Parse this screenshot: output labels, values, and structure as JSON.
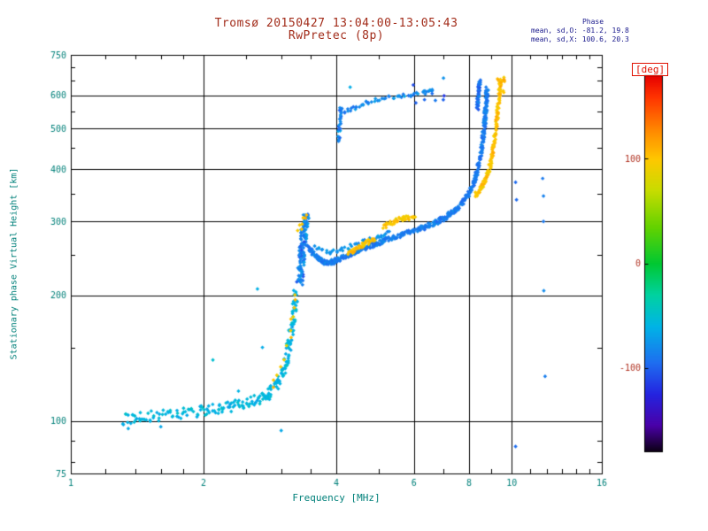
{
  "chart_data": {
    "type": "scatter",
    "title": "Tromsø 20150427 13:04:00-13:05:43",
    "subtitle": "RwPretec (8p)",
    "xlabel": "Frequency [MHz]",
    "ylabel": "Stationary phase Virtual Height [km]",
    "xscale": "log",
    "yscale": "log",
    "xlim": [
      1,
      16
    ],
    "ylim": [
      75,
      750
    ],
    "xticks": [
      1,
      2,
      4,
      6,
      8,
      10,
      16
    ],
    "yticks": [
      75,
      100,
      200,
      300,
      400,
      500,
      600,
      750
    ],
    "xminor": [
      1.2,
      1.4,
      1.6,
      1.8,
      2.5,
      3,
      3.5,
      5,
      7,
      9,
      11,
      12,
      13,
      14,
      15
    ],
    "yminor": [
      80,
      90,
      150,
      250,
      350,
      450,
      550,
      650,
      700
    ],
    "grid": true,
    "annotations": {
      "header": "Phase",
      "o_mode": "mean, sd,O: -81.2, 19.8",
      "x_mode": "mean, sd,X: 100.6, 20.3"
    },
    "colorbar": {
      "label": "[deg]",
      "ticks": [
        100,
        0,
        -100
      ],
      "min": -180,
      "max": 180
    },
    "marker": {
      "shape": "diamond",
      "size": 2.2
    },
    "colors": {
      "title": "#a22c1a",
      "axis": "#00807a",
      "annotation": "#1a1a8c",
      "colorbar_label": "#e01000",
      "colorbar_tick": "#b03020",
      "grid": "#000000",
      "background": "#ffffff"
    },
    "colormap": [
      {
        "v": -180,
        "c": "#0d0014"
      },
      {
        "v": -155,
        "c": "#4a00a8"
      },
      {
        "v": -125,
        "c": "#2424e0"
      },
      {
        "v": -95,
        "c": "#1e6ef0"
      },
      {
        "v": -60,
        "c": "#00b4e6"
      },
      {
        "v": -30,
        "c": "#00d2a0"
      },
      {
        "v": 0,
        "c": "#00c832"
      },
      {
        "v": 35,
        "c": "#64d200"
      },
      {
        "v": 70,
        "c": "#c8dc00"
      },
      {
        "v": 100,
        "c": "#ffc800"
      },
      {
        "v": 130,
        "c": "#ff8200"
      },
      {
        "v": 160,
        "c": "#ff3200"
      },
      {
        "v": 180,
        "c": "#e60000"
      }
    ],
    "traces": [
      {
        "name": "E-region O-mode low trace",
        "phase": -58,
        "sd": 14,
        "density": 3,
        "interp": 4,
        "fj": 0.012,
        "hj": 0.03,
        "pts": [
          [
            1.32,
            101
          ],
          [
            1.42,
            102
          ],
          [
            1.55,
            103
          ],
          [
            1.7,
            104
          ],
          [
            1.85,
            105
          ],
          [
            2.0,
            106
          ],
          [
            2.15,
            107
          ],
          [
            2.3,
            108
          ],
          [
            2.45,
            110
          ],
          [
            2.6,
            112
          ],
          [
            2.72,
            114
          ],
          [
            2.82,
            117
          ],
          [
            2.92,
            122
          ],
          [
            3.0,
            128
          ],
          [
            3.06,
            136
          ],
          [
            3.11,
            146
          ],
          [
            3.15,
            157
          ],
          [
            3.19,
            170
          ],
          [
            3.22,
            186
          ],
          [
            3.24,
            203
          ]
        ]
      },
      {
        "name": "E-region X-mode sprinkle",
        "phase": 96,
        "sd": 18,
        "density": 1,
        "interp": 2,
        "fj": 0.01,
        "hj": 0.02,
        "pts": [
          [
            2.86,
            120
          ],
          [
            2.96,
            130
          ],
          [
            3.06,
            143
          ],
          [
            3.13,
            158
          ],
          [
            3.18,
            172
          ],
          [
            3.21,
            188
          ],
          [
            3.23,
            200
          ]
        ]
      },
      {
        "name": "spread cluster 3.3-3.4 MHz",
        "phase": -85,
        "sd": 28,
        "density": 5,
        "interp": 3,
        "fj": 0.016,
        "hj": 0.02,
        "pts": [
          [
            3.3,
            214
          ],
          [
            3.32,
            226
          ],
          [
            3.34,
            240
          ],
          [
            3.35,
            253
          ],
          [
            3.36,
            266
          ],
          [
            3.37,
            278
          ],
          [
            3.38,
            290
          ],
          [
            3.4,
            300
          ],
          [
            3.42,
            308
          ]
        ]
      },
      {
        "name": "cluster X-mode sprinkle",
        "phase": 100,
        "sd": 15,
        "density": 2,
        "interp": 1,
        "fj": 0.012,
        "hj": 0.012,
        "pts": [
          [
            3.34,
            296
          ],
          [
            3.37,
            304
          ],
          [
            3.41,
            310
          ],
          [
            3.3,
            288
          ]
        ]
      },
      {
        "name": "F-region O-mode main trace",
        "phase": -88,
        "sd": 12,
        "density": 4,
        "interp": 4,
        "fj": 0.007,
        "hj": 0.013,
        "pts": [
          [
            3.46,
            262
          ],
          [
            3.56,
            250
          ],
          [
            3.66,
            244
          ],
          [
            3.76,
            240
          ],
          [
            3.86,
            239
          ],
          [
            3.96,
            241
          ],
          [
            4.1,
            245
          ],
          [
            4.3,
            250
          ],
          [
            4.5,
            256
          ],
          [
            4.72,
            261
          ],
          [
            4.95,
            266
          ],
          [
            5.2,
            271
          ],
          [
            5.5,
            276
          ],
          [
            5.8,
            281
          ],
          [
            6.1,
            286
          ],
          [
            6.4,
            292
          ],
          [
            6.7,
            298
          ],
          [
            7.0,
            305
          ],
          [
            7.3,
            314
          ],
          [
            7.6,
            326
          ],
          [
            7.85,
            340
          ],
          [
            8.05,
            356
          ],
          [
            8.22,
            375
          ],
          [
            8.36,
            398
          ],
          [
            8.47,
            425
          ],
          [
            8.56,
            455
          ],
          [
            8.63,
            488
          ],
          [
            8.69,
            522
          ],
          [
            8.73,
            556
          ],
          [
            8.76,
            590
          ],
          [
            8.79,
            620
          ]
        ]
      },
      {
        "name": "F-region O-mode upper branch",
        "phase": -78,
        "sd": 12,
        "density": 2,
        "interp": 3,
        "fj": 0.008,
        "hj": 0.012,
        "pts": [
          [
            3.6,
            260
          ],
          [
            3.8,
            253
          ],
          [
            4.0,
            255
          ],
          [
            4.25,
            260
          ],
          [
            4.5,
            266
          ],
          [
            4.75,
            271
          ],
          [
            5.0,
            276
          ],
          [
            5.25,
            281
          ]
        ]
      },
      {
        "name": "F-region X-mode patch 1",
        "phase": 102,
        "sd": 14,
        "density": 3,
        "interp": 3,
        "fj": 0.009,
        "hj": 0.013,
        "pts": [
          [
            4.28,
            252
          ],
          [
            4.42,
            257
          ],
          [
            4.56,
            262
          ],
          [
            4.7,
            267
          ],
          [
            4.85,
            272
          ]
        ]
      },
      {
        "name": "F-region X-mode patch 2",
        "phase": 98,
        "sd": 14,
        "density": 3,
        "interp": 3,
        "fj": 0.009,
        "hj": 0.012,
        "pts": [
          [
            5.15,
            292
          ],
          [
            5.3,
            297
          ],
          [
            5.45,
            301
          ],
          [
            5.6,
            304
          ],
          [
            5.78,
            306
          ],
          [
            6.0,
            304
          ]
        ]
      },
      {
        "name": "F-region X-mode rise",
        "phase": 100,
        "sd": 16,
        "density": 4,
        "interp": 3,
        "fj": 0.006,
        "hj": 0.014,
        "pts": [
          [
            8.3,
            348
          ],
          [
            8.45,
            356
          ],
          [
            8.6,
            367
          ],
          [
            8.75,
            381
          ],
          [
            8.88,
            398
          ],
          [
            8.98,
            418
          ],
          [
            9.06,
            442
          ],
          [
            9.13,
            468
          ],
          [
            9.2,
            498
          ],
          [
            9.26,
            530
          ],
          [
            9.31,
            562
          ],
          [
            9.36,
            596
          ],
          [
            9.4,
            628
          ],
          [
            9.44,
            655
          ]
        ]
      },
      {
        "name": "second hop streak 4 MHz",
        "phase": -85,
        "sd": 20,
        "density": 3,
        "interp": 2,
        "fj": 0.006,
        "hj": 0.012,
        "pts": [
          [
            4.05,
            468
          ],
          [
            4.06,
            492
          ],
          [
            4.07,
            515
          ],
          [
            4.08,
            540
          ],
          [
            4.1,
            560
          ]
        ]
      },
      {
        "name": "second hop band",
        "phase": -82,
        "sd": 18,
        "density": 2,
        "interp": 3,
        "fj": 0.01,
        "hj": 0.01,
        "pts": [
          [
            4.2,
            548
          ],
          [
            4.38,
            560
          ],
          [
            4.6,
            572
          ],
          [
            4.85,
            582
          ],
          [
            5.15,
            590
          ],
          [
            5.5,
            597
          ],
          [
            5.85,
            602
          ],
          [
            6.15,
            607
          ],
          [
            6.45,
            612
          ],
          [
            6.65,
            614
          ]
        ]
      },
      {
        "name": "second hop sparse",
        "phase": -95,
        "sd": 25,
        "density": 1,
        "interp": 1,
        "fj": 0.01,
        "hj": 0.012,
        "pts": [
          [
            5.95,
            640
          ],
          [
            6.1,
            572
          ],
          [
            6.3,
            582
          ],
          [
            6.55,
            600
          ],
          [
            6.75,
            590
          ],
          [
            6.95,
            586
          ],
          [
            7.05,
            600
          ]
        ]
      },
      {
        "name": "top blue column 8.4 MHz",
        "phase": -92,
        "sd": 20,
        "density": 4,
        "interp": 3,
        "fj": 0.006,
        "hj": 0.012,
        "pts": [
          [
            8.36,
            560
          ],
          [
            8.38,
            582
          ],
          [
            8.41,
            604
          ],
          [
            8.43,
            626
          ],
          [
            8.46,
            648
          ]
        ]
      },
      {
        "name": "top orange sparse",
        "phase": 104,
        "sd": 14,
        "density": 2,
        "interp": 1,
        "fj": 0.008,
        "hj": 0.01,
        "pts": [
          [
            9.5,
            640
          ],
          [
            9.56,
            660
          ],
          [
            9.6,
            612
          ],
          [
            9.65,
            648
          ],
          [
            9.3,
            655
          ]
        ]
      },
      {
        "name": "right sparse echoes",
        "phase": -90,
        "sd": 25,
        "density": 1,
        "interp": 0,
        "fj": 0,
        "hj": 0,
        "pts": [
          [
            10.2,
            372
          ],
          [
            10.25,
            338
          ],
          [
            11.75,
            380
          ],
          [
            11.8,
            345
          ],
          [
            11.8,
            300
          ],
          [
            11.82,
            205
          ],
          [
            11.9,
            128
          ],
          [
            10.2,
            87
          ]
        ]
      },
      {
        "name": "outliers",
        "phase": -65,
        "sd": 20,
        "density": 1,
        "interp": 0,
        "fj": 0,
        "hj": 0,
        "pts": [
          [
            2.65,
            207
          ],
          [
            2.72,
            150
          ],
          [
            2.1,
            140
          ],
          [
            1.35,
            96
          ],
          [
            1.6,
            97
          ],
          [
            3.0,
            95
          ],
          [
            7.0,
            660
          ],
          [
            4.3,
            628
          ],
          [
            2.4,
            118
          ]
        ]
      }
    ]
  }
}
